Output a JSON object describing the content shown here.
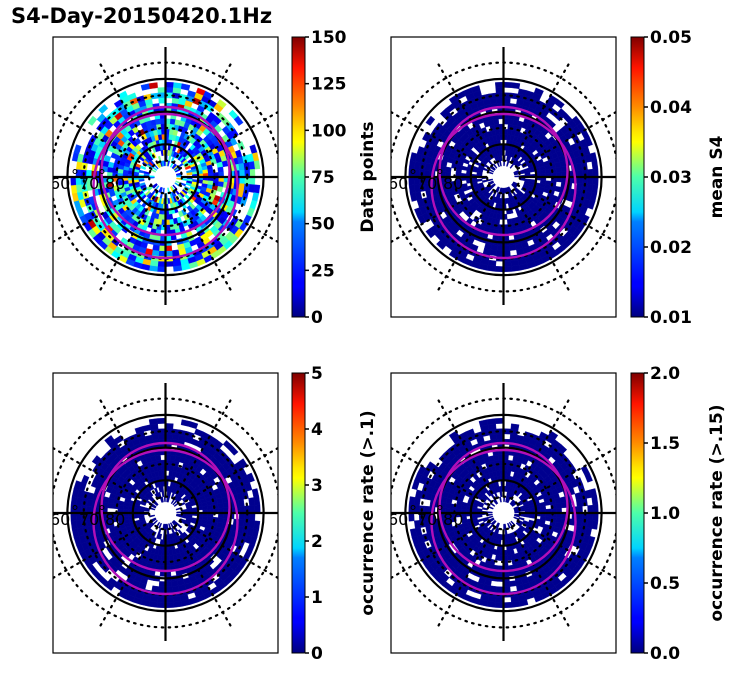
{
  "figure": {
    "title": "S4-Day-20150420.1Hz"
  },
  "chart_data": [
    {
      "type": "heatmap",
      "projection": "north-polar-stereographic",
      "title": "",
      "colormap": "jet",
      "colorbar": {
        "label": "Data points",
        "range": [
          0,
          150
        ],
        "ticks": [
          "0",
          "25",
          "50",
          "75",
          "100",
          "125",
          "150"
        ]
      },
      "latitude_circles_solid": [
        80,
        70,
        60
      ],
      "latitude_labels": [
        "60",
        "70",
        "80"
      ],
      "coverage_lat_range": [
        60,
        85
      ],
      "value_description": "mixed counts ~0-150, mostly 10-80, sparse high values (~120-150) on dawn/dusk sides",
      "auroral_oval_boundaries": [
        "equatorward",
        "poleward"
      ]
    },
    {
      "type": "heatmap",
      "projection": "north-polar-stereographic",
      "title": "",
      "colormap": "jet",
      "colorbar": {
        "label": "mean S4",
        "range": [
          0.01,
          0.05
        ],
        "ticks": [
          "0.01",
          "0.02",
          "0.03",
          "0.04",
          "0.05"
        ]
      },
      "latitude_circles_solid": [
        80,
        70,
        60
      ],
      "latitude_labels": [
        "60",
        "70",
        "80"
      ],
      "coverage_lat_range": [
        60,
        85
      ],
      "value_description": "nearly all bins at colormap minimum (~0.01)",
      "auroral_oval_boundaries": [
        "equatorward",
        "poleward"
      ]
    },
    {
      "type": "heatmap",
      "projection": "north-polar-stereographic",
      "title": "",
      "colormap": "jet",
      "colorbar": {
        "label": "occurrence rate (>.1)",
        "range": [
          0,
          5
        ],
        "ticks": [
          "0",
          "1",
          "2",
          "3",
          "4",
          "5"
        ]
      },
      "latitude_circles_solid": [
        80,
        70,
        60
      ],
      "latitude_labels": [
        "60",
        "70",
        "80"
      ],
      "coverage_lat_range": [
        60,
        85
      ],
      "value_description": "nearly all bins at 0",
      "auroral_oval_boundaries": [
        "equatorward",
        "poleward"
      ]
    },
    {
      "type": "heatmap",
      "projection": "north-polar-stereographic",
      "title": "",
      "colormap": "jet",
      "colorbar": {
        "label": "occurrence rate (>.15)",
        "range": [
          0.0,
          2.0
        ],
        "ticks": [
          "0.0",
          "0.5",
          "1.0",
          "1.5",
          "2.0"
        ]
      },
      "latitude_circles_solid": [
        80,
        70,
        60
      ],
      "latitude_labels": [
        "60",
        "70",
        "80"
      ],
      "coverage_lat_range": [
        60,
        85
      ],
      "value_description": "nearly all bins at 0.0",
      "auroral_oval_boundaries": [
        "equatorward",
        "poleward"
      ]
    }
  ],
  "colors": {
    "oval": "#b20fb8",
    "grid": "#000000",
    "low": "#00008f"
  }
}
